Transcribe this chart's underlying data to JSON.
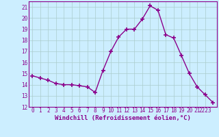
{
  "x": [
    0,
    1,
    2,
    3,
    4,
    5,
    6,
    7,
    8,
    9,
    10,
    11,
    12,
    13,
    14,
    15,
    16,
    17,
    18,
    19,
    20,
    21,
    22,
    23
  ],
  "y": [
    14.8,
    14.6,
    14.4,
    14.1,
    14.0,
    14.0,
    13.9,
    13.8,
    13.3,
    15.3,
    17.0,
    18.3,
    19.0,
    19.0,
    19.9,
    21.1,
    20.7,
    18.5,
    18.2,
    16.6,
    15.0,
    13.8,
    13.1,
    12.4
  ],
  "line_color": "#8b008b",
  "marker": "+",
  "markersize": 4,
  "markeredgewidth": 1.2,
  "linewidth": 1.0,
  "bg_color": "#cceeff",
  "grid_color": "#aacccc",
  "xlabel": "Windchill (Refroidissement éolien,°C)",
  "xlabel_fontsize": 6.5,
  "xlabel_color": "#8b008b",
  "ylim": [
    12,
    21.5
  ],
  "xlim": [
    -0.5,
    23.5
  ],
  "yticks": [
    12,
    13,
    14,
    15,
    16,
    17,
    18,
    19,
    20,
    21
  ],
  "ytick_labels": [
    "12",
    "13",
    "14",
    "15",
    "16",
    "17",
    "18",
    "19",
    "20",
    "21"
  ],
  "xtick_positions": [
    0,
    1,
    2,
    3,
    4,
    5,
    6,
    7,
    8,
    9,
    10,
    11,
    12,
    13,
    14,
    15,
    16,
    17,
    18,
    19,
    20,
    21,
    22
  ],
  "xtick_labels": [
    "0",
    "1",
    "2",
    "3",
    "4",
    "5",
    "6",
    "7",
    "8",
    "9",
    "10",
    "11",
    "12",
    "13",
    "14",
    "15",
    "16",
    "17",
    "18",
    "19",
    "20",
    "21",
    "2223"
  ],
  "tick_fontsize": 5.5,
  "tick_color": "#8b008b",
  "spine_color": "#8b008b"
}
